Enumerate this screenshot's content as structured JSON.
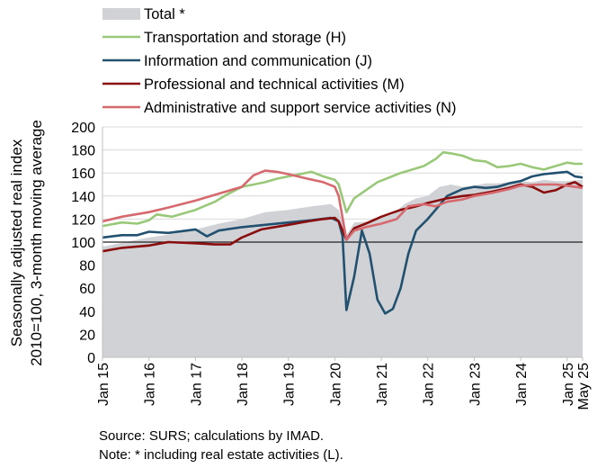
{
  "chart_data": {
    "type": "line",
    "title": "",
    "ylabel_lines": [
      "Seasonally adjusted real index",
      "2010=100, 3-month moving average"
    ],
    "xlabel": "",
    "ylim": [
      0,
      200
    ],
    "yticks": [
      0,
      20,
      40,
      60,
      80,
      100,
      120,
      140,
      160,
      180,
      200
    ],
    "xlim": [
      "2015-01",
      "2025-05"
    ],
    "xticks": [
      "Jan 15",
      "Jan 16",
      "Jan 17",
      "Jan 18",
      "Jan 19",
      "Jan 20",
      "Jan 21",
      "Jan 22",
      "Jan 23",
      "Jan 24",
      "Jan 25",
      "May 25"
    ],
    "xtick_dates": [
      "2015-01",
      "2016-01",
      "2017-01",
      "2018-01",
      "2019-01",
      "2020-01",
      "2021-01",
      "2022-01",
      "2023-01",
      "2024-01",
      "2025-01",
      "2025-05"
    ],
    "reference_line": 100,
    "gridlines": "horizontal",
    "legend_position": "top",
    "series": [
      {
        "name": "Total *",
        "kind": "area",
        "color": "#d0d2d6",
        "points": [
          [
            "2015-01",
            96
          ],
          [
            "2015-07",
            100
          ],
          [
            "2016-01",
            104
          ],
          [
            "2016-07",
            107
          ],
          [
            "2017-01",
            111
          ],
          [
            "2017-07",
            116
          ],
          [
            "2018-01",
            120
          ],
          [
            "2018-07",
            126
          ],
          [
            "2019-01",
            128
          ],
          [
            "2019-07",
            131
          ],
          [
            "2019-12",
            133
          ],
          [
            "2020-02",
            128
          ],
          [
            "2020-04",
            106
          ],
          [
            "2020-06",
            117
          ],
          [
            "2020-10",
            118
          ],
          [
            "2021-01",
            121
          ],
          [
            "2021-04",
            124
          ],
          [
            "2021-07",
            133
          ],
          [
            "2021-10",
            138
          ],
          [
            "2022-01",
            140
          ],
          [
            "2022-04",
            148
          ],
          [
            "2022-07",
            150
          ],
          [
            "2022-10",
            148
          ],
          [
            "2023-01",
            149
          ],
          [
            "2023-04",
            151
          ],
          [
            "2023-07",
            151
          ],
          [
            "2023-10",
            152
          ],
          [
            "2024-01",
            153
          ],
          [
            "2024-04",
            152
          ],
          [
            "2024-07",
            154
          ],
          [
            "2024-10",
            153
          ],
          [
            "2025-01",
            153
          ],
          [
            "2025-05",
            154
          ]
        ]
      },
      {
        "name": "Transportation and storage (H)",
        "kind": "line",
        "color": "#99c978",
        "points": [
          [
            "2015-01",
            114
          ],
          [
            "2015-06",
            117
          ],
          [
            "2015-10",
            116
          ],
          [
            "2016-01",
            119
          ],
          [
            "2016-03",
            124
          ],
          [
            "2016-07",
            122
          ],
          [
            "2017-01",
            128
          ],
          [
            "2017-06",
            135
          ],
          [
            "2017-09",
            141
          ],
          [
            "2018-01",
            148
          ],
          [
            "2018-04",
            150
          ],
          [
            "2018-07",
            152
          ],
          [
            "2018-10",
            155
          ],
          [
            "2019-01",
            157
          ],
          [
            "2019-04",
            159
          ],
          [
            "2019-07",
            161
          ],
          [
            "2019-10",
            157
          ],
          [
            "2020-01",
            154
          ],
          [
            "2020-02",
            150
          ],
          [
            "2020-04",
            126
          ],
          [
            "2020-06",
            138
          ],
          [
            "2020-09",
            145
          ],
          [
            "2020-12",
            152
          ],
          [
            "2021-03",
            156
          ],
          [
            "2021-06",
            160
          ],
          [
            "2021-09",
            163
          ],
          [
            "2021-12",
            166
          ],
          [
            "2022-03",
            172
          ],
          [
            "2022-05",
            178
          ],
          [
            "2022-07",
            177
          ],
          [
            "2022-10",
            175
          ],
          [
            "2023-01",
            171
          ],
          [
            "2023-04",
            170
          ],
          [
            "2023-07",
            165
          ],
          [
            "2023-10",
            166
          ],
          [
            "2024-01",
            168
          ],
          [
            "2024-04",
            165
          ],
          [
            "2024-07",
            163
          ],
          [
            "2024-10",
            166
          ],
          [
            "2025-01",
            169
          ],
          [
            "2025-03",
            168
          ],
          [
            "2025-05",
            168
          ]
        ]
      },
      {
        "name": "Information and communication (J)",
        "kind": "line",
        "color": "#22506f",
        "points": [
          [
            "2015-01",
            104
          ],
          [
            "2015-06",
            106
          ],
          [
            "2015-10",
            106
          ],
          [
            "2016-01",
            109
          ],
          [
            "2016-06",
            108
          ],
          [
            "2017-01",
            111
          ],
          [
            "2017-04",
            105
          ],
          [
            "2017-07",
            110
          ],
          [
            "2018-01",
            113
          ],
          [
            "2018-07",
            115
          ],
          [
            "2019-01",
            117
          ],
          [
            "2019-07",
            119
          ],
          [
            "2019-12",
            121
          ],
          [
            "2020-02",
            118
          ],
          [
            "2020-03",
            105
          ],
          [
            "2020-04",
            41
          ],
          [
            "2020-06",
            70
          ],
          [
            "2020-08",
            110
          ],
          [
            "2020-10",
            90
          ],
          [
            "2020-12",
            50
          ],
          [
            "2021-02",
            38
          ],
          [
            "2021-04",
            42
          ],
          [
            "2021-06",
            60
          ],
          [
            "2021-08",
            90
          ],
          [
            "2021-10",
            110
          ],
          [
            "2022-01",
            120
          ],
          [
            "2022-03",
            128
          ],
          [
            "2022-06",
            140
          ],
          [
            "2022-10",
            146
          ],
          [
            "2023-01",
            148
          ],
          [
            "2023-04",
            147
          ],
          [
            "2023-07",
            148
          ],
          [
            "2023-10",
            151
          ],
          [
            "2024-01",
            153
          ],
          [
            "2024-04",
            157
          ],
          [
            "2024-07",
            159
          ],
          [
            "2024-10",
            160
          ],
          [
            "2025-01",
            161
          ],
          [
            "2025-03",
            157
          ],
          [
            "2025-05",
            156
          ]
        ]
      },
      {
        "name": "Professional and technical activities (M)",
        "kind": "line",
        "color": "#8b0e0e",
        "points": [
          [
            "2015-01",
            92
          ],
          [
            "2015-06",
            95
          ],
          [
            "2016-01",
            97
          ],
          [
            "2016-06",
            100
          ],
          [
            "2017-01",
            99
          ],
          [
            "2017-06",
            98
          ],
          [
            "2017-10",
            98
          ],
          [
            "2018-01",
            104
          ],
          [
            "2018-06",
            111
          ],
          [
            "2019-01",
            115
          ],
          [
            "2019-06",
            118
          ],
          [
            "2019-10",
            120
          ],
          [
            "2020-01",
            121
          ],
          [
            "2020-02",
            118
          ],
          [
            "2020-04",
            102
          ],
          [
            "2020-06",
            112
          ],
          [
            "2020-09",
            116
          ],
          [
            "2021-01",
            122
          ],
          [
            "2021-06",
            128
          ],
          [
            "2021-10",
            131
          ],
          [
            "2022-01",
            134
          ],
          [
            "2022-06",
            138
          ],
          [
            "2022-10",
            140
          ],
          [
            "2023-01",
            141
          ],
          [
            "2023-06",
            144
          ],
          [
            "2023-10",
            147
          ],
          [
            "2024-01",
            150
          ],
          [
            "2024-04",
            148
          ],
          [
            "2024-07",
            143
          ],
          [
            "2024-10",
            145
          ],
          [
            "2025-01",
            150
          ],
          [
            "2025-03",
            152
          ],
          [
            "2025-05",
            148
          ]
        ]
      },
      {
        "name": "Administrative and support service activities (N)",
        "kind": "line",
        "color": "#d6696e",
        "points": [
          [
            "2015-01",
            118
          ],
          [
            "2015-06",
            122
          ],
          [
            "2016-01",
            126
          ],
          [
            "2016-06",
            130
          ],
          [
            "2017-01",
            136
          ],
          [
            "2017-06",
            141
          ],
          [
            "2018-01",
            148
          ],
          [
            "2018-04",
            158
          ],
          [
            "2018-07",
            162
          ],
          [
            "2018-10",
            161
          ],
          [
            "2019-01",
            159
          ],
          [
            "2019-06",
            155
          ],
          [
            "2019-10",
            152
          ],
          [
            "2020-01",
            148
          ],
          [
            "2020-02",
            140
          ],
          [
            "2020-04",
            102
          ],
          [
            "2020-06",
            110
          ],
          [
            "2020-09",
            113
          ],
          [
            "2021-01",
            116
          ],
          [
            "2021-05",
            120
          ],
          [
            "2021-08",
            131
          ],
          [
            "2021-12",
            133
          ],
          [
            "2022-03",
            131
          ],
          [
            "2022-06",
            135
          ],
          [
            "2022-10",
            137
          ],
          [
            "2023-01",
            140
          ],
          [
            "2023-06",
            143
          ],
          [
            "2023-10",
            146
          ],
          [
            "2024-01",
            149
          ],
          [
            "2024-06",
            150
          ],
          [
            "2024-10",
            150
          ],
          [
            "2025-01",
            149
          ],
          [
            "2025-05",
            147
          ]
        ]
      }
    ]
  },
  "notes": {
    "source": "Source:  SURS; calculations by IMAD.",
    "note": "Note: * including real estate activities (L)."
  }
}
